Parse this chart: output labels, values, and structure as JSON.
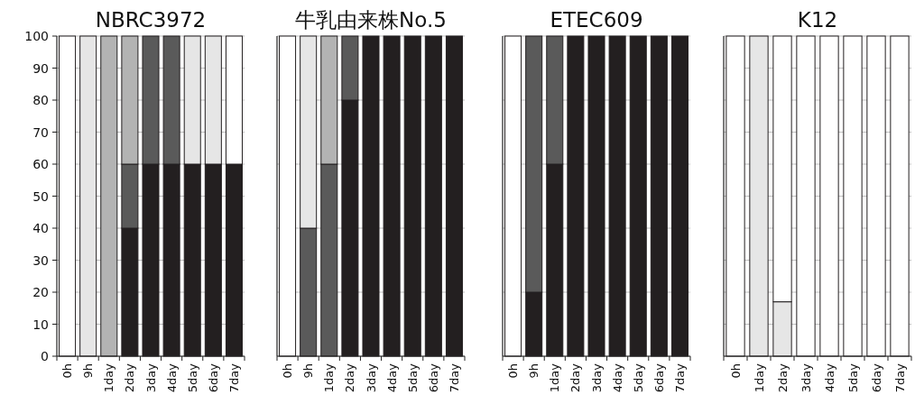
{
  "chart_data": [
    {
      "type": "bar",
      "title": "NBRC3972",
      "stacked": true,
      "grid": "y",
      "ylim": [
        0,
        100
      ],
      "yticks": [
        0,
        10,
        20,
        30,
        40,
        50,
        60,
        70,
        80,
        90,
        100
      ],
      "categories": [
        "0h",
        "9h",
        "1day",
        "2day",
        "3day",
        "4day",
        "5day",
        "6day",
        "7day"
      ],
      "series": [
        {
          "color": "#231f20",
          "values": [
            0,
            0,
            0,
            40,
            60,
            60,
            60,
            60,
            60
          ]
        },
        {
          "color": "#5a5a5a",
          "values": [
            0,
            0,
            0,
            20,
            40,
            40,
            0,
            0,
            0
          ]
        },
        {
          "color": "#b3b3b3",
          "values": [
            0,
            0,
            100,
            40,
            0,
            0,
            0,
            0,
            0
          ]
        },
        {
          "color": "#e6e6e6",
          "values": [
            0,
            100,
            0,
            0,
            0,
            0,
            40,
            40,
            0
          ]
        },
        {
          "color": "#ffffff",
          "values": [
            100,
            0,
            0,
            0,
            0,
            0,
            0,
            0,
            40
          ]
        }
      ]
    },
    {
      "type": "bar",
      "title": "牛乳由来株No.5",
      "stacked": true,
      "grid": "y",
      "ylim": [
        0,
        100
      ],
      "yticks": [
        0,
        20,
        40,
        60,
        80,
        100
      ],
      "tick_labels": "x",
      "categories": [
        "0h",
        "9h",
        "1day",
        "2day",
        "3day",
        "4day",
        "5day",
        "6day",
        "7day"
      ],
      "series": [
        {
          "color": "#231f20",
          "values": [
            0,
            0,
            0,
            80,
            100,
            100,
            100,
            100,
            100
          ]
        },
        {
          "color": "#5a5a5a",
          "values": [
            0,
            40,
            60,
            20,
            0,
            0,
            0,
            0,
            0
          ]
        },
        {
          "color": "#b3b3b3",
          "values": [
            0,
            0,
            40,
            0,
            0,
            0,
            0,
            0,
            0
          ]
        },
        {
          "color": "#e6e6e6",
          "values": [
            0,
            60,
            0,
            0,
            0,
            0,
            0,
            0,
            0
          ]
        },
        {
          "color": "#ffffff",
          "values": [
            100,
            0,
            0,
            0,
            0,
            0,
            0,
            0,
            0
          ]
        }
      ]
    },
    {
      "type": "bar",
      "title": "ETEC609",
      "stacked": true,
      "grid": "y",
      "ylim": [
        0,
        100
      ],
      "yticks": [
        0,
        20,
        40,
        60,
        80,
        100
      ],
      "tick_labels": "x",
      "categories": [
        "0h",
        "9h",
        "1day",
        "2day",
        "3day",
        "4day",
        "5day",
        "6day",
        "7day"
      ],
      "series": [
        {
          "color": "#231f20",
          "values": [
            0,
            20,
            60,
            100,
            100,
            100,
            100,
            100,
            100
          ]
        },
        {
          "color": "#5a5a5a",
          "values": [
            0,
            80,
            40,
            0,
            0,
            0,
            0,
            0,
            0
          ]
        },
        {
          "color": "#ffffff",
          "values": [
            100,
            0,
            0,
            0,
            0,
            0,
            0,
            0,
            0
          ]
        }
      ]
    },
    {
      "type": "bar",
      "title": "K12",
      "stacked": true,
      "grid": "y",
      "ylim": [
        0,
        100
      ],
      "yticks": [
        0,
        10,
        20,
        30,
        40,
        50,
        60,
        70,
        80,
        90,
        100
      ],
      "tick_labels": "x",
      "categories": [
        "0h",
        "1day",
        "2day",
        "3day",
        "4day",
        "5day",
        "6day",
        "7day"
      ],
      "series": [
        {
          "color": "#e6e6e6",
          "values": [
            0,
            100,
            17,
            0,
            0,
            0,
            0,
            0
          ]
        },
        {
          "color": "#ffffff",
          "values": [
            100,
            0,
            83,
            100,
            100,
            100,
            100,
            100
          ]
        }
      ]
    }
  ]
}
